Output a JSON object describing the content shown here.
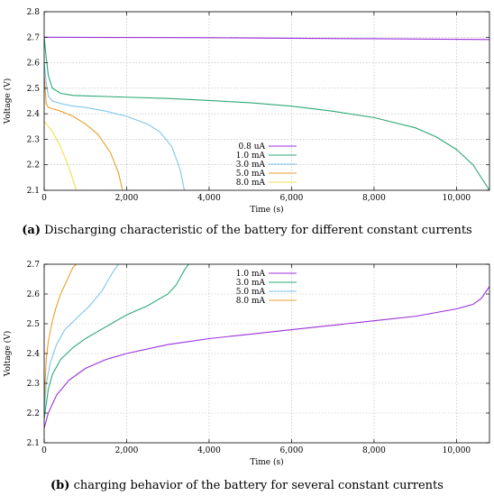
{
  "chart_data": [
    {
      "type": "line",
      "xlabel": "Time (s)",
      "ylabel": "Voltage (V)",
      "xlim": [
        0,
        10800
      ],
      "ylim": [
        2.1,
        2.8
      ],
      "xticks": [
        0,
        2000,
        4000,
        6000,
        8000,
        10000
      ],
      "xtick_labels": [
        "0",
        "2,000",
        "4,000",
        "6,000",
        "8,000",
        "10,000"
      ],
      "yticks": [
        2.1,
        2.2,
        2.3,
        2.4,
        2.5,
        2.6,
        2.7,
        2.8
      ],
      "ytick_labels": [
        "2.1",
        "2.2",
        "2.3",
        "2.4",
        "2.5",
        "2.6",
        "2.7",
        "2.8"
      ],
      "grid": true,
      "legend_position": "center",
      "series": [
        {
          "name": "0.8 uA",
          "color": "#9b30d9",
          "x": [
            0,
            2000,
            4000,
            6000,
            8000,
            10000,
            10800
          ],
          "y": [
            2.7,
            2.699,
            2.698,
            2.696,
            2.694,
            2.692,
            2.691
          ]
        },
        {
          "name": "1.0 mA",
          "color": "#2ea875",
          "x": [
            0,
            50,
            100,
            200,
            400,
            700,
            1000,
            2000,
            3000,
            4000,
            5000,
            6000,
            7000,
            8000,
            9000,
            9500,
            10000,
            10400,
            10800
          ],
          "y": [
            2.7,
            2.62,
            2.55,
            2.5,
            2.48,
            2.472,
            2.47,
            2.465,
            2.46,
            2.452,
            2.443,
            2.43,
            2.41,
            2.385,
            2.345,
            2.31,
            2.26,
            2.2,
            2.1
          ]
        },
        {
          "name": "3.0 mA",
          "color": "#7dc6ea",
          "x": [
            0,
            50,
            100,
            200,
            400,
            700,
            1000,
            1500,
            2000,
            2500,
            2800,
            3100,
            3300,
            3400
          ],
          "y": [
            2.6,
            2.52,
            2.47,
            2.45,
            2.44,
            2.43,
            2.425,
            2.41,
            2.39,
            2.36,
            2.33,
            2.27,
            2.18,
            2.1
          ]
        },
        {
          "name": "5.0 mA",
          "color": "#e8a02c",
          "x": [
            0,
            50,
            100,
            200,
            400,
            700,
            1000,
            1300,
            1600,
            1800,
            1900
          ],
          "y": [
            2.55,
            2.44,
            2.425,
            2.42,
            2.41,
            2.39,
            2.36,
            2.32,
            2.25,
            2.17,
            2.1
          ]
        },
        {
          "name": "8.0 mA",
          "color": "#f0e050",
          "x": [
            0,
            100,
            200,
            300,
            400,
            500,
            600,
            700,
            780
          ],
          "y": [
            2.37,
            2.35,
            2.33,
            2.3,
            2.27,
            2.23,
            2.19,
            2.14,
            2.1
          ]
        }
      ]
    },
    {
      "type": "line",
      "xlabel": "Time (s)",
      "ylabel": "Voltage (V)",
      "xlim": [
        0,
        10800
      ],
      "ylim": [
        2.1,
        2.7
      ],
      "xticks": [
        0,
        2000,
        4000,
        6000,
        8000,
        10000
      ],
      "xtick_labels": [
        "0",
        "2,000",
        "4,000",
        "6,000",
        "8,000",
        "10,000"
      ],
      "yticks": [
        2.1,
        2.2,
        2.3,
        2.4,
        2.5,
        2.6,
        2.7
      ],
      "ytick_labels": [
        "2.1",
        "2.2",
        "2.3",
        "2.4",
        "2.5",
        "2.6",
        "2.7"
      ],
      "grid": true,
      "legend_position": "top-center",
      "series": [
        {
          "name": "1.0 mA",
          "color": "#9b30d9",
          "x": [
            0,
            100,
            300,
            600,
            1000,
            1500,
            2000,
            3000,
            4000,
            5000,
            6000,
            7000,
            8000,
            9000,
            10000,
            10400,
            10600,
            10800
          ],
          "y": [
            2.15,
            2.2,
            2.26,
            2.31,
            2.35,
            2.38,
            2.4,
            2.43,
            2.45,
            2.465,
            2.48,
            2.495,
            2.51,
            2.525,
            2.55,
            2.565,
            2.585,
            2.625
          ]
        },
        {
          "name": "3.0 mA",
          "color": "#2ea875",
          "x": [
            0,
            100,
            200,
            400,
            700,
            1000,
            1500,
            2000,
            2500,
            3000,
            3200,
            3400,
            3500
          ],
          "y": [
            2.18,
            2.28,
            2.33,
            2.38,
            2.42,
            2.45,
            2.49,
            2.53,
            2.56,
            2.6,
            2.63,
            2.68,
            2.7
          ]
        },
        {
          "name": "5.0 mA",
          "color": "#7dc6ea",
          "x": [
            0,
            50,
            150,
            300,
            500,
            800,
            1100,
            1400,
            1650,
            1800
          ],
          "y": [
            2.2,
            2.3,
            2.37,
            2.43,
            2.48,
            2.52,
            2.56,
            2.61,
            2.67,
            2.7
          ]
        },
        {
          "name": "8.0 mA",
          "color": "#e8a02c",
          "x": [
            0,
            50,
            100,
            200,
            300,
            400,
            500,
            600,
            700,
            780
          ],
          "y": [
            2.24,
            2.38,
            2.44,
            2.51,
            2.56,
            2.6,
            2.63,
            2.66,
            2.69,
            2.7
          ]
        }
      ]
    }
  ],
  "captions": {
    "a_letter": "(a)",
    "a_text": " Discharging characteristic of the battery for different constant currents",
    "b_letter": "(b)",
    "b_text": " charging behavior of the battery for several constant currents"
  }
}
